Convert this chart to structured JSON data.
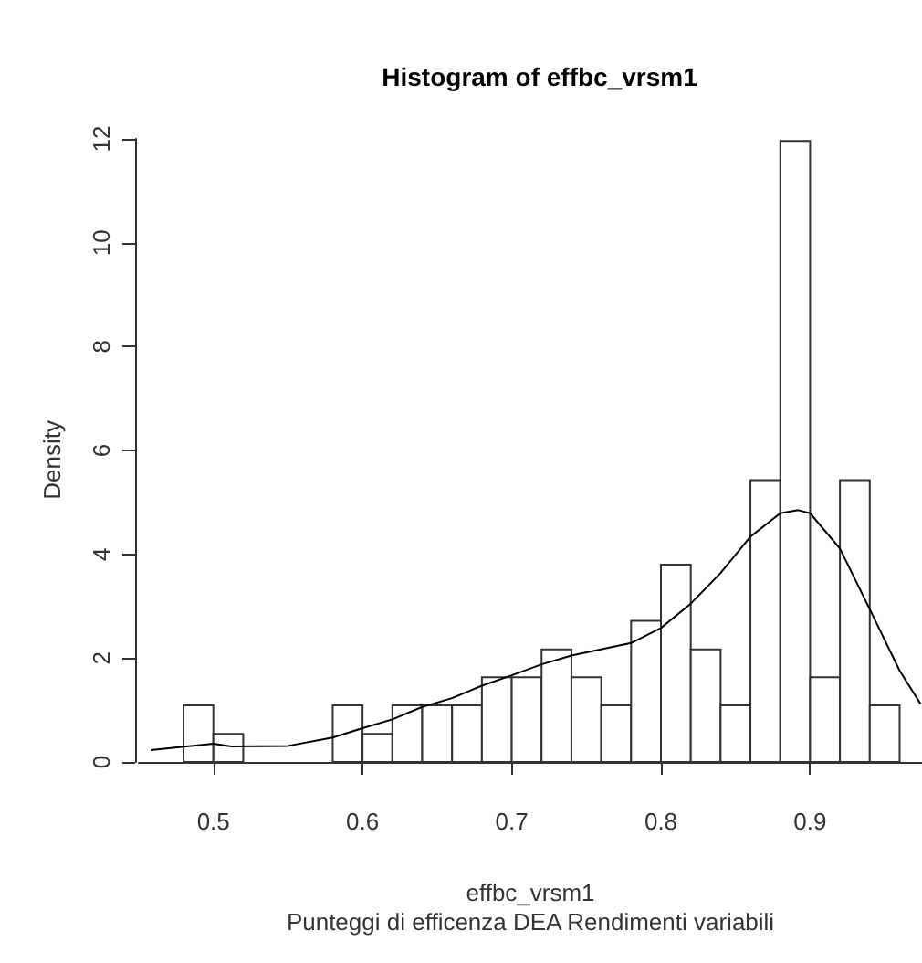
{
  "chart_data": {
    "type": "histogram",
    "title": "Histogram of effbc_vrsm1",
    "subtitle": "Punteggi di efficenza DEA Rendimenti variabili",
    "xlabel": "effbc_vrsm1",
    "ylabel": "Density",
    "bins": [
      0.48,
      0.5,
      0.52,
      0.54,
      0.56,
      0.58,
      0.6,
      0.62,
      0.64,
      0.66,
      0.68,
      0.7,
      0.72,
      0.74,
      0.76,
      0.78,
      0.8,
      0.82,
      0.84,
      0.86,
      0.88,
      0.9,
      0.92,
      0.94,
      0.96
    ],
    "values": [
      1.09,
      0.54,
      0,
      0,
      0,
      1.09,
      0.54,
      1.09,
      1.09,
      1.09,
      1.63,
      1.63,
      2.17,
      1.63,
      1.09,
      2.72,
      3.8,
      2.17,
      1.09,
      5.43,
      11.96,
      1.63,
      5.43,
      1.09
    ],
    "series": [
      {
        "type": "line",
        "color": "#000000",
        "x": [
          0.458,
          0.5,
          0.512,
          0.55,
          0.58,
          0.6,
          0.62,
          0.64,
          0.66,
          0.68,
          0.7,
          0.72,
          0.74,
          0.78,
          0.8,
          0.82,
          0.84,
          0.86,
          0.88,
          0.892,
          0.9,
          0.92,
          0.94,
          0.96,
          0.974
        ],
        "values": [
          0.23,
          0.35,
          0.3,
          0.31,
          0.47,
          0.65,
          0.82,
          1.06,
          1.23,
          1.47,
          1.67,
          1.88,
          2.05,
          2.29,
          2.58,
          3.05,
          3.64,
          4.34,
          4.79,
          4.85,
          4.79,
          4.11,
          2.94,
          1.76,
          1.12
        ]
      }
    ],
    "color": "#ffffff",
    "xlim": [
      0.45,
      0.975
    ],
    "ylim": [
      0,
      12
    ],
    "xticks": [
      0.5,
      0.6,
      0.7,
      0.8,
      0.9
    ],
    "yticks": [
      0,
      2,
      4,
      6,
      8,
      10,
      12
    ],
    "grid": false
  }
}
